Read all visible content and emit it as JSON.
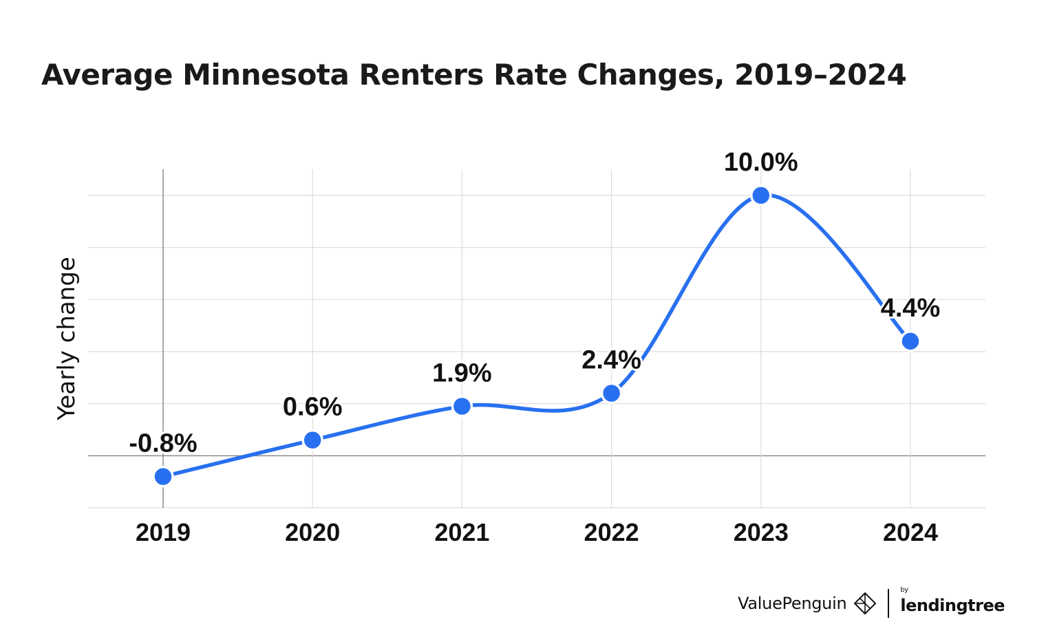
{
  "chart_data": {
    "type": "line",
    "title": "Average Minnesota Renters Rate Changes, 2019–2024",
    "ylabel": "Yearly change",
    "xlabel": "",
    "categories": [
      "2019",
      "2020",
      "2021",
      "2022",
      "2023",
      "2024"
    ],
    "series": [
      {
        "values": [
          -0.8,
          0.6,
          1.9,
          2.4,
          10.0,
          4.4
        ],
        "labels": [
          "-0.8%",
          "0.6%",
          "1.9%",
          "2.4%",
          "10.0%",
          "4.4%"
        ]
      }
    ],
    "ylim": [
      -2,
      11
    ],
    "yticks": [
      -2,
      0,
      2,
      4,
      6,
      8,
      10
    ],
    "grid": true,
    "legend": "none",
    "line_style": "smooth",
    "colors": {
      "series": "#2870f0"
    }
  },
  "branding": {
    "name": "ValuePenguin",
    "partner_prefix": "by",
    "partner": "lendingtree"
  }
}
